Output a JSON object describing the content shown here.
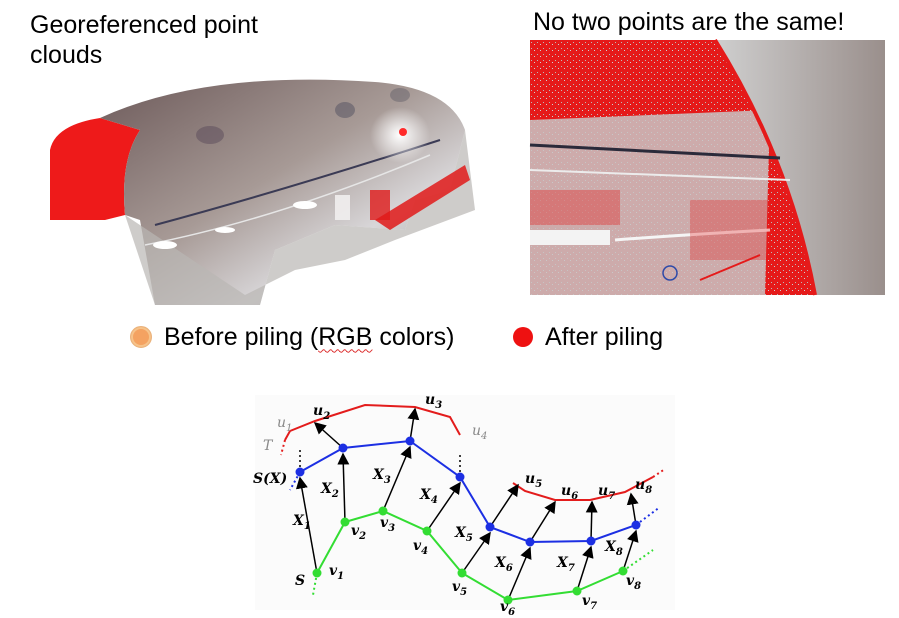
{
  "left_panel": {
    "title": "Georeferenced point clouds"
  },
  "right_panel": {
    "title": "No two points are the same!"
  },
  "legend": {
    "before_prefix": "Before piling (",
    "before_squiggle": "RGB",
    "before_suffix": " colors)",
    "after_label": "After piling",
    "before_color": "#f4a261",
    "after_color": "#ee1111"
  },
  "diagram": {
    "colors": {
      "T": "#e31c1c",
      "SX": "#1c2fe3",
      "S": "#33dd33",
      "arrow": "#000000"
    },
    "T_label": "T",
    "SX_label": "S(X)",
    "S_label": "S",
    "u_labels": [
      {
        "base": "u",
        "sub": "1",
        "gray": true
      },
      {
        "base": "u",
        "sub": "2",
        "gray": false
      },
      {
        "base": "u",
        "sub": "3",
        "gray": false
      },
      {
        "base": "u",
        "sub": "4",
        "gray": true
      },
      {
        "base": "u",
        "sub": "5",
        "gray": false
      },
      {
        "base": "u",
        "sub": "6",
        "gray": false
      },
      {
        "base": "u",
        "sub": "7",
        "gray": false
      },
      {
        "base": "u",
        "sub": "8",
        "gray": false
      }
    ],
    "X_labels": [
      {
        "base": "X",
        "sub": "1"
      },
      {
        "base": "X",
        "sub": "2"
      },
      {
        "base": "X",
        "sub": "3"
      },
      {
        "base": "X",
        "sub": "4"
      },
      {
        "base": "X",
        "sub": "5"
      },
      {
        "base": "X",
        "sub": "6"
      },
      {
        "base": "X",
        "sub": "7"
      },
      {
        "base": "X",
        "sub": "8"
      }
    ],
    "v_labels": [
      {
        "base": "v",
        "sub": "1"
      },
      {
        "base": "v",
        "sub": "2"
      },
      {
        "base": "v",
        "sub": "3"
      },
      {
        "base": "v",
        "sub": "4"
      },
      {
        "base": "v",
        "sub": "5"
      },
      {
        "base": "v",
        "sub": "6"
      },
      {
        "base": "v",
        "sub": "7"
      },
      {
        "base": "v",
        "sub": "8"
      }
    ]
  }
}
